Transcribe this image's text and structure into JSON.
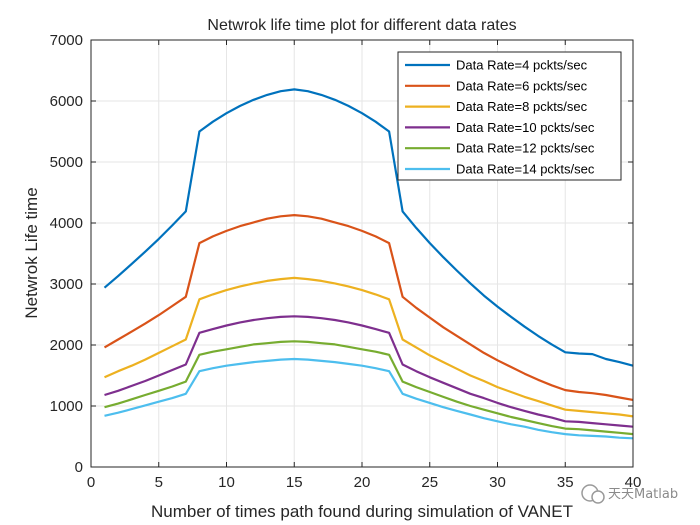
{
  "chart_data": {
    "type": "line",
    "title": "Netwrok life time plot for different data rates",
    "xlabel": "Number of times path found during simulation of VANET",
    "ylabel": "Netwrok Life time",
    "xlim": [
      0,
      40
    ],
    "ylim": [
      0,
      7000
    ],
    "xticks": [
      0,
      5,
      10,
      15,
      20,
      25,
      30,
      35,
      40
    ],
    "yticks": [
      0,
      1000,
      2000,
      3000,
      4000,
      5000,
      6000,
      7000
    ],
    "grid": true,
    "legend_position": "top-right",
    "x": [
      1,
      2,
      3,
      4,
      5,
      6,
      7,
      8,
      9,
      10,
      11,
      12,
      13,
      14,
      15,
      16,
      17,
      18,
      19,
      20,
      21,
      22,
      23,
      24,
      25,
      26,
      27,
      28,
      29,
      30,
      31,
      32,
      33,
      34,
      35,
      36,
      37,
      38,
      39,
      40
    ],
    "series": [
      {
        "name": "Data Rate=4 pckts/sec",
        "color": "#0072BD",
        "values": [
          2940,
          3130,
          3330,
          3530,
          3740,
          3960,
          4190,
          5500,
          5660,
          5800,
          5920,
          6020,
          6100,
          6160,
          6190,
          6160,
          6100,
          6020,
          5920,
          5800,
          5660,
          5500,
          4190,
          3920,
          3670,
          3440,
          3220,
          3010,
          2810,
          2630,
          2460,
          2300,
          2150,
          2010,
          1880,
          1860,
          1850,
          1770,
          1720,
          1660
        ]
      },
      {
        "name": "Data Rate=6 pckts/sec",
        "color": "#D95319",
        "values": [
          1960,
          2090,
          2220,
          2350,
          2490,
          2640,
          2790,
          3670,
          3780,
          3870,
          3950,
          4010,
          4070,
          4110,
          4130,
          4110,
          4070,
          4010,
          3950,
          3870,
          3780,
          3670,
          2790,
          2610,
          2450,
          2290,
          2150,
          2010,
          1870,
          1750,
          1640,
          1530,
          1430,
          1340,
          1260,
          1230,
          1210,
          1180,
          1140,
          1100
        ]
      },
      {
        "name": "Data Rate=8 pckts/sec",
        "color": "#EDB120",
        "values": [
          1470,
          1570,
          1660,
          1760,
          1870,
          1980,
          2090,
          2750,
          2830,
          2900,
          2960,
          3010,
          3050,
          3080,
          3100,
          3080,
          3050,
          3010,
          2960,
          2900,
          2830,
          2750,
          2090,
          1960,
          1830,
          1720,
          1610,
          1500,
          1410,
          1310,
          1230,
          1150,
          1080,
          1010,
          940,
          920,
          900,
          880,
          860,
          830
        ]
      },
      {
        "name": "Data Rate=10 pckts/sec",
        "color": "#7E2F8E",
        "values": [
          1180,
          1250,
          1330,
          1410,
          1500,
          1590,
          1680,
          2200,
          2260,
          2320,
          2370,
          2410,
          2440,
          2460,
          2470,
          2460,
          2440,
          2410,
          2370,
          2320,
          2260,
          2200,
          1680,
          1570,
          1470,
          1380,
          1290,
          1200,
          1130,
          1050,
          980,
          920,
          860,
          810,
          750,
          740,
          720,
          700,
          680,
          660
        ]
      },
      {
        "name": "Data Rate=12 pckts/sec",
        "color": "#77AC30",
        "values": [
          980,
          1040,
          1110,
          1180,
          1250,
          1320,
          1400,
          1840,
          1890,
          1930,
          1970,
          2010,
          2030,
          2050,
          2060,
          2050,
          2030,
          2010,
          1970,
          1930,
          1890,
          1840,
          1400,
          1310,
          1230,
          1150,
          1070,
          1000,
          940,
          880,
          820,
          770,
          720,
          670,
          630,
          620,
          600,
          580,
          560,
          540
        ]
      },
      {
        "name": "Data Rate=14 pckts/sec",
        "color": "#4DBEEE",
        "values": [
          840,
          890,
          950,
          1010,
          1070,
          1130,
          1200,
          1570,
          1620,
          1660,
          1690,
          1720,
          1740,
          1760,
          1770,
          1760,
          1740,
          1720,
          1690,
          1660,
          1620,
          1570,
          1200,
          1120,
          1050,
          980,
          920,
          860,
          800,
          750,
          700,
          660,
          610,
          570,
          540,
          520,
          510,
          500,
          480,
          470
        ]
      }
    ]
  },
  "watermark": {
    "text": "天天Matlab"
  }
}
